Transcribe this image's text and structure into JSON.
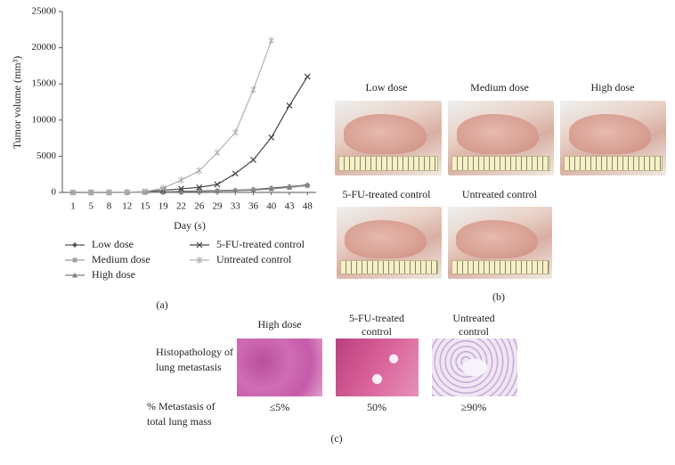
{
  "chart_data": {
    "type": "line",
    "y_label": "Tumor volume (mm³)",
    "x_label": "Day (s)",
    "categories": [
      "1",
      "5",
      "8",
      "12",
      "15",
      "19",
      "22",
      "26",
      "29",
      "33",
      "36",
      "40",
      "43",
      "48"
    ],
    "ylim": [
      0,
      25000
    ],
    "yticks": [
      0,
      5000,
      10000,
      15000,
      20000,
      25000
    ],
    "series": [
      {
        "name": "Low dose",
        "color": "#555555",
        "marker": "diamond",
        "values": [
          0,
          0,
          0,
          20,
          50,
          100,
          150,
          200,
          250,
          300,
          400,
          600,
          800,
          1000
        ]
      },
      {
        "name": "Medium dose",
        "color": "#a0a0a0",
        "marker": "square",
        "values": [
          0,
          0,
          0,
          20,
          40,
          80,
          120,
          160,
          200,
          250,
          350,
          500,
          700,
          900
        ]
      },
      {
        "name": "High dose",
        "color": "#808080",
        "marker": "triangle",
        "values": [
          0,
          0,
          0,
          10,
          30,
          60,
          100,
          150,
          200,
          250,
          300,
          500,
          700,
          1100
        ]
      },
      {
        "name": "5-FU-treated control",
        "color": "#444444",
        "marker": "x",
        "values": [
          0,
          0,
          0,
          30,
          100,
          300,
          500,
          700,
          1100,
          2600,
          4500,
          7600,
          12000,
          16000
        ]
      },
      {
        "name": "Untreated control",
        "color": "#b0b0b0",
        "marker": "asterisk",
        "values": [
          0,
          0,
          0,
          50,
          100,
          600,
          1700,
          3000,
          5500,
          8300,
          14200,
          21000,
          null,
          null
        ]
      }
    ]
  },
  "panel_a": "(a)",
  "panel_b": {
    "labels": [
      "Low dose",
      "Medium dose",
      "High dose",
      "5-FU-treated control",
      "Untreated control"
    ],
    "panel": "(b)"
  },
  "panel_c": {
    "columns": [
      "High dose",
      "5-FU-treated control",
      "Untreated control"
    ],
    "row_labels": [
      "Histopathology of lung metastasis",
      "% Metastasis of total lung mass"
    ],
    "metastasis": [
      "≤5%",
      "50%",
      "≥90%"
    ],
    "panel": "(c)"
  }
}
